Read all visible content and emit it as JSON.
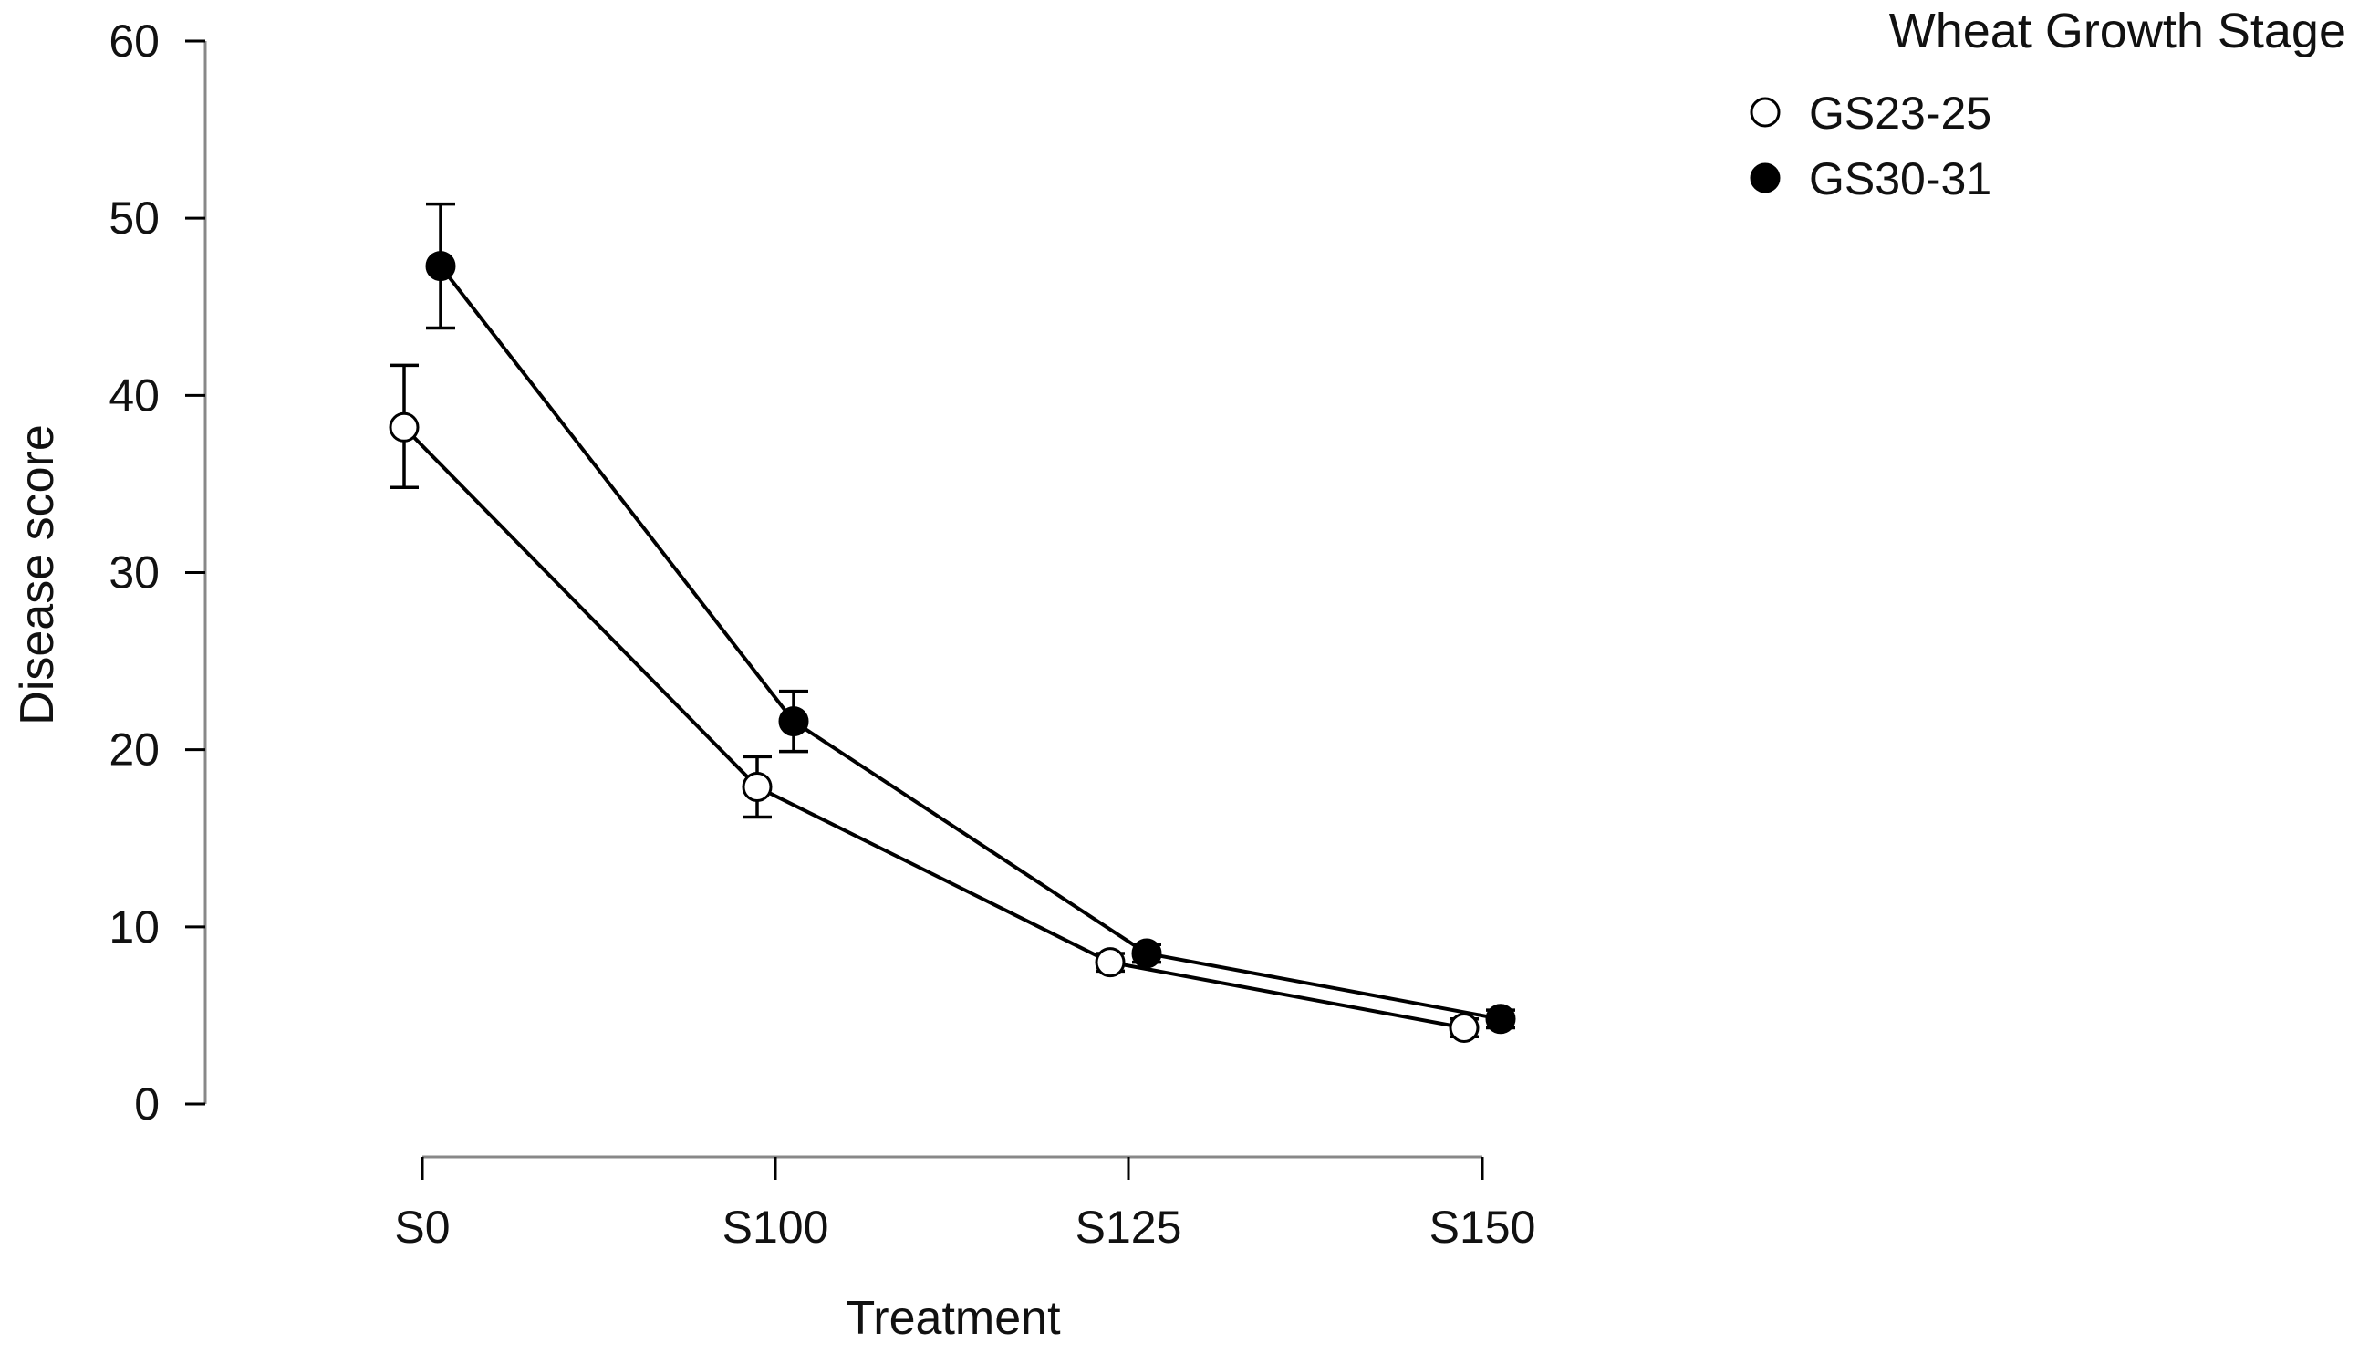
{
  "chart_data": {
    "type": "line",
    "xlabel": "Treatment",
    "ylabel": "Disease score",
    "categories": [
      "S0",
      "S100",
      "S125",
      "S150"
    ],
    "ylim": [
      0,
      60
    ],
    "yticks": [
      0,
      10,
      20,
      30,
      40,
      50,
      60
    ],
    "legend": {
      "title": "Wheat Growth Stage",
      "placement": "top-right"
    },
    "series": [
      {
        "name": "GS23-25",
        "marker": "open-circle",
        "color": "#000000",
        "fill": "#ffffff",
        "values": [
          38.2,
          17.9,
          8.0,
          4.3
        ],
        "error_low": [
          34.8,
          16.2,
          7.5,
          3.8
        ],
        "error_high": [
          41.7,
          19.6,
          8.5,
          4.8
        ]
      },
      {
        "name": "GS30-31",
        "marker": "filled-circle",
        "color": "#000000",
        "fill": "#000000",
        "values": [
          47.3,
          21.6,
          8.5,
          4.8
        ],
        "error_low": [
          43.8,
          19.9,
          8.0,
          4.3
        ],
        "error_high": [
          50.8,
          23.3,
          9.0,
          5.3
        ]
      }
    ]
  }
}
